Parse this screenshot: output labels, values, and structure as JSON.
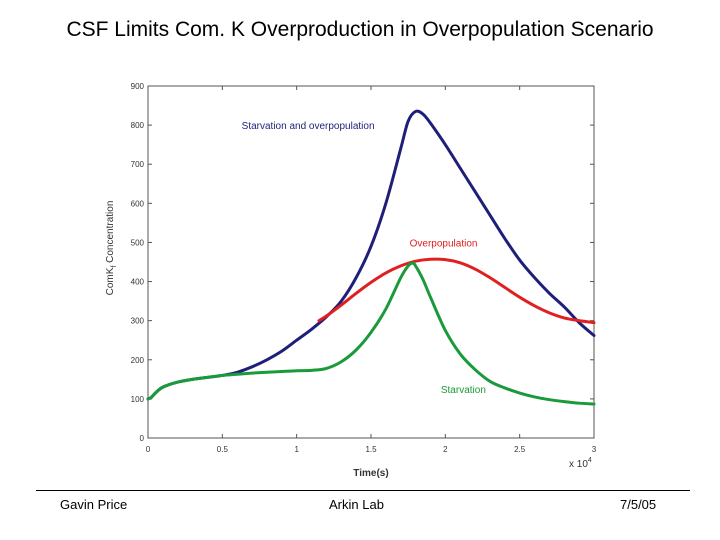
{
  "slide": {
    "title": "CSF Limits Com. K Overproduction in Overpopulation Scenario"
  },
  "footer": {
    "left": "Gavin Price",
    "center": "Arkin Lab",
    "right": "7/5/05"
  },
  "chart_data": {
    "type": "line",
    "title": "",
    "xlabel": "Time(s)",
    "x_multiplier_label": "x 10",
    "x_multiplier_exponent": "4",
    "ylabel": "ComK",
    "ylabel_subscript": "f",
    "ylabel_suffix": " Concentration",
    "xlim": [
      0,
      3
    ],
    "ylim": [
      0,
      900
    ],
    "x_ticks": [
      0,
      0.5,
      1,
      1.5,
      2,
      2.5,
      3
    ],
    "x_tick_labels": [
      "0",
      "0.5",
      "1",
      "1.5",
      "2",
      "2.5",
      "3"
    ],
    "y_ticks": [
      0,
      100,
      200,
      300,
      400,
      500,
      600,
      700,
      800,
      900
    ],
    "y_tick_labels": [
      "0",
      "100",
      "200",
      "300",
      "400",
      "500",
      "600",
      "700",
      "800",
      "900"
    ],
    "grid": false,
    "series": [
      {
        "name": "Starvation and overpopulation",
        "color": "#1f1f7a",
        "label_at": [
          0.63,
          790
        ],
        "x": [
          0,
          0.02,
          0.05,
          0.1,
          0.2,
          0.3,
          0.4,
          0.5,
          0.6,
          0.7,
          0.8,
          0.9,
          1.0,
          1.1,
          1.2,
          1.3,
          1.4,
          1.5,
          1.6,
          1.7,
          1.75,
          1.8,
          1.85,
          1.9,
          2.0,
          2.1,
          2.2,
          2.3,
          2.4,
          2.5,
          2.6,
          2.7,
          2.8,
          2.9,
          3.0
        ],
        "values": [
          100,
          103,
          115,
          130,
          143,
          150,
          155,
          160,
          168,
          182,
          200,
          222,
          250,
          278,
          310,
          350,
          410,
          490,
          600,
          740,
          810,
          835,
          828,
          805,
          750,
          690,
          630,
          570,
          510,
          455,
          410,
          370,
          335,
          295,
          262
        ]
      },
      {
        "name": "Overpopulation",
        "color": "#e02020",
        "label_at": [
          1.76,
          490
        ],
        "x": [
          1.15,
          1.2,
          1.3,
          1.4,
          1.5,
          1.6,
          1.7,
          1.8,
          1.9,
          2.0,
          2.1,
          2.2,
          2.3,
          2.4,
          2.5,
          2.6,
          2.7,
          2.8,
          2.9,
          3.0
        ],
        "values": [
          300,
          312,
          340,
          370,
          398,
          422,
          440,
          452,
          457,
          456,
          448,
          432,
          410,
          385,
          360,
          338,
          320,
          307,
          300,
          295
        ]
      },
      {
        "name": "Starvation",
        "color": "#1a9a3a",
        "label_at": [
          1.97,
          115
        ],
        "x": [
          0,
          0.02,
          0.05,
          0.1,
          0.2,
          0.3,
          0.4,
          0.5,
          0.6,
          0.7,
          0.8,
          0.9,
          1.0,
          1.1,
          1.2,
          1.3,
          1.4,
          1.5,
          1.6,
          1.7,
          1.75,
          1.78,
          1.8,
          1.85,
          1.9,
          2.0,
          2.1,
          2.2,
          2.3,
          2.4,
          2.5,
          2.6,
          2.7,
          2.8,
          2.9,
          3.0
        ],
        "values": [
          100,
          103,
          115,
          130,
          143,
          150,
          155,
          160,
          163,
          166,
          168,
          170,
          172,
          173,
          178,
          195,
          225,
          270,
          330,
          410,
          440,
          447,
          440,
          405,
          360,
          275,
          215,
          175,
          145,
          128,
          115,
          105,
          98,
          93,
          89,
          87
        ]
      }
    ]
  }
}
